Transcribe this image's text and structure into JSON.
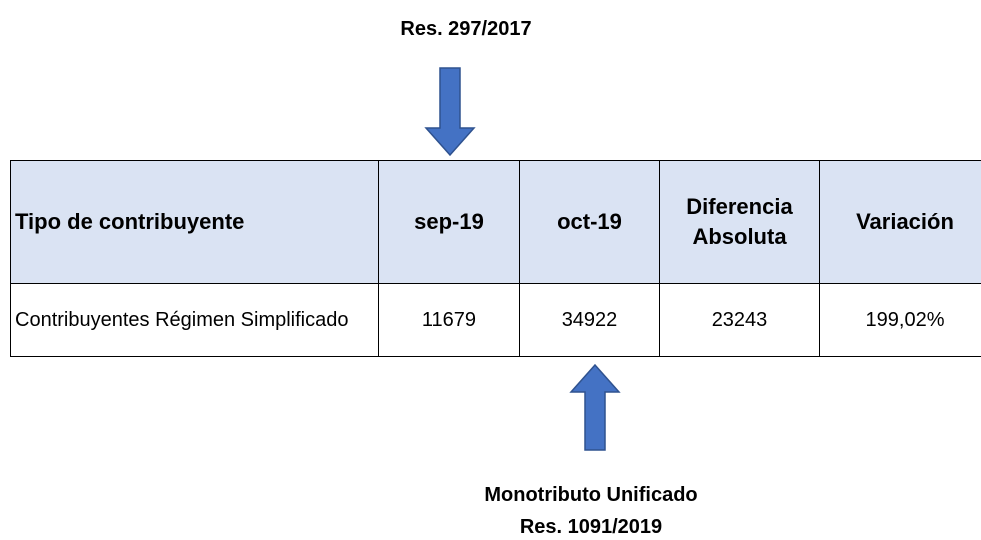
{
  "header": {
    "title": "Res. 297/2017"
  },
  "table": {
    "columns": [
      "Tipo de contribuyente",
      "sep-19",
      "oct-19",
      "Diferencia Absoluta",
      "Variación"
    ],
    "rows": [
      [
        "Contribuyentes Régimen Simplificado",
        11679,
        34922,
        23243,
        "199,02%"
      ]
    ]
  },
  "footer": {
    "lines": [
      "Monotributo Unificado",
      "Res. 1091/2019"
    ]
  }
}
